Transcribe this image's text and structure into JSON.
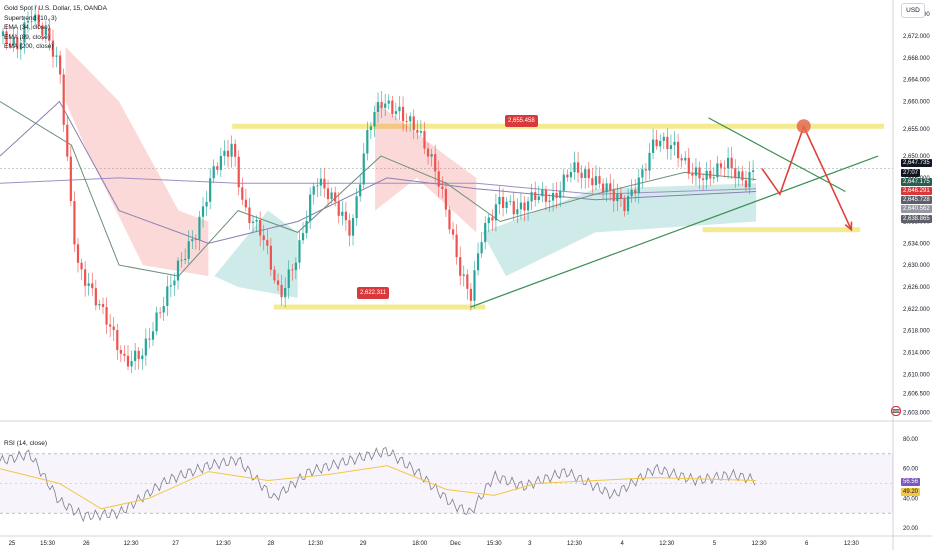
{
  "header": {
    "title": "Gold Spot / U.S. Dollar, 15, OANDA",
    "indicators": [
      "Supertrend (10, 3)",
      "EMA (34, close)",
      "EMA (89, close)",
      "EMA (200, close)"
    ],
    "currency": "USD"
  },
  "rsi": {
    "label": "RSI (14, close)",
    "value_a": "56.56",
    "value_b": "49.20"
  },
  "annotations": {
    "resistance_label": "2,655.458",
    "support_label": "2,622.311"
  },
  "price_tags": [
    {
      "text": "2,647.735",
      "bg": "#131722"
    },
    {
      "text": "27:07",
      "bg": "#131722"
    },
    {
      "text": "2,647.175",
      "bg": "#2c5e4f"
    },
    {
      "text": "2,646.291",
      "bg": "#d9393b"
    },
    {
      "text": "2,645.728",
      "bg": "#5d606b"
    },
    {
      "text": "2,640.562",
      "bg": "#9598a1"
    },
    {
      "text": "2,638.865",
      "bg": "#5d606b"
    }
  ],
  "colors": {
    "up": "#26a69a",
    "down": "#ef5350",
    "band": "#f0e36b",
    "arrow": "#e0403a",
    "trend": "#3e8f55",
    "rsi": "#7e57c2"
  },
  "chart_data": [
    {
      "type": "candlestick",
      "title": "Gold Spot / U.S. Dollar, 15, OANDA",
      "x_ticks": [
        "25",
        "15:30",
        "26",
        "12:30",
        "27",
        "12:30",
        "28",
        "12:30",
        "29",
        "18:00",
        "Dec",
        "15:30",
        "3",
        "12:30",
        "4",
        "12:30",
        "5",
        "12:30",
        "6",
        "12:30"
      ],
      "y_ticks": [
        "2,676.000",
        "2,672.000",
        "2,668.000",
        "2,664.000",
        "2,660.000",
        "2,655.000",
        "2,650.000",
        "2,646.000",
        "2,642.000",
        "2,638.000",
        "2,634.000",
        "2,630.000",
        "2,626.000",
        "2,622.000",
        "2,618.000",
        "2,614.000",
        "2,610.000",
        "2,606.500",
        "2,603.000"
      ],
      "ylim": [
        2601.8,
        2678.6
      ],
      "resistance": 2655.458,
      "support": 2622.311,
      "target": 2636.5,
      "price_path": [
        {
          "x": 0,
          "y": 2672
        },
        {
          "x": 6,
          "y": 2670
        },
        {
          "x": 10,
          "y": 2676
        },
        {
          "x": 16,
          "y": 2672
        },
        {
          "x": 20,
          "y": 2666
        },
        {
          "x": 24,
          "y": 2640
        },
        {
          "x": 26,
          "y": 2630
        },
        {
          "x": 30,
          "y": 2626
        },
        {
          "x": 36,
          "y": 2620
        },
        {
          "x": 42,
          "y": 2612
        },
        {
          "x": 48,
          "y": 2614
        },
        {
          "x": 54,
          "y": 2622
        },
        {
          "x": 60,
          "y": 2630
        },
        {
          "x": 66,
          "y": 2636
        },
        {
          "x": 72,
          "y": 2648
        },
        {
          "x": 78,
          "y": 2652
        },
        {
          "x": 82,
          "y": 2640
        },
        {
          "x": 88,
          "y": 2636
        },
        {
          "x": 94,
          "y": 2624
        },
        {
          "x": 100,
          "y": 2632
        },
        {
          "x": 106,
          "y": 2646
        },
        {
          "x": 112,
          "y": 2642
        },
        {
          "x": 118,
          "y": 2636
        },
        {
          "x": 124,
          "y": 2656
        },
        {
          "x": 128,
          "y": 2660
        },
        {
          "x": 134,
          "y": 2658
        },
        {
          "x": 140,
          "y": 2655
        },
        {
          "x": 146,
          "y": 2648
        },
        {
          "x": 150,
          "y": 2640
        },
        {
          "x": 154,
          "y": 2630
        },
        {
          "x": 158,
          "y": 2624
        },
        {
          "x": 162,
          "y": 2636
        },
        {
          "x": 168,
          "y": 2642
        },
        {
          "x": 174,
          "y": 2640
        },
        {
          "x": 180,
          "y": 2643
        },
        {
          "x": 186,
          "y": 2642
        },
        {
          "x": 192,
          "y": 2648
        },
        {
          "x": 198,
          "y": 2646
        },
        {
          "x": 204,
          "y": 2644
        },
        {
          "x": 210,
          "y": 2641
        },
        {
          "x": 216,
          "y": 2647
        },
        {
          "x": 220,
          "y": 2653
        },
        {
          "x": 226,
          "y": 2652
        },
        {
          "x": 232,
          "y": 2647
        },
        {
          "x": 238,
          "y": 2646
        },
        {
          "x": 244,
          "y": 2649
        },
        {
          "x": 250,
          "y": 2645
        },
        {
          "x": 254,
          "y": 2647.7
        }
      ],
      "projection": [
        {
          "x": 256,
          "y": 2647.7
        },
        {
          "x": 262,
          "y": 2643
        },
        {
          "x": 270,
          "y": 2655.4
        },
        {
          "x": 278,
          "y": 2646
        },
        {
          "x": 286,
          "y": 2636.5
        }
      ],
      "ema_34": [
        {
          "x": 0,
          "y": 2660
        },
        {
          "x": 24,
          "y": 2652
        },
        {
          "x": 40,
          "y": 2630
        },
        {
          "x": 60,
          "y": 2628
        },
        {
          "x": 80,
          "y": 2640
        },
        {
          "x": 100,
          "y": 2636
        },
        {
          "x": 128,
          "y": 2650
        },
        {
          "x": 150,
          "y": 2645
        },
        {
          "x": 168,
          "y": 2638
        },
        {
          "x": 200,
          "y": 2643
        },
        {
          "x": 230,
          "y": 2647
        },
        {
          "x": 254,
          "y": 2645.7
        }
      ],
      "ema_89": [
        {
          "x": 0,
          "y": 2650
        },
        {
          "x": 20,
          "y": 2660
        },
        {
          "x": 40,
          "y": 2640
        },
        {
          "x": 70,
          "y": 2634
        },
        {
          "x": 100,
          "y": 2638
        },
        {
          "x": 130,
          "y": 2646
        },
        {
          "x": 160,
          "y": 2644
        },
        {
          "x": 200,
          "y": 2642
        },
        {
          "x": 254,
          "y": 2643.5
        }
      ],
      "ema_200": [
        {
          "x": 0,
          "y": 2645
        },
        {
          "x": 40,
          "y": 2646
        },
        {
          "x": 80,
          "y": 2645
        },
        {
          "x": 120,
          "y": 2645
        },
        {
          "x": 160,
          "y": 2645
        },
        {
          "x": 200,
          "y": 2643
        },
        {
          "x": 254,
          "y": 2644
        }
      ],
      "trendline": [
        {
          "x": 158,
          "y": 2622.3
        },
        {
          "x": 295,
          "y": 2650
        }
      ]
    },
    {
      "type": "line",
      "title": "RSI (14, close)",
      "y_ticks": [
        "80.00",
        "60.00",
        "40.00",
        "20.00"
      ],
      "ylim": [
        16,
        82
      ],
      "bands": [
        70,
        30
      ],
      "rsi": [
        {
          "x": 0,
          "y": 65
        },
        {
          "x": 10,
          "y": 70
        },
        {
          "x": 20,
          "y": 38
        },
        {
          "x": 28,
          "y": 28
        },
        {
          "x": 40,
          "y": 30
        },
        {
          "x": 56,
          "y": 52
        },
        {
          "x": 70,
          "y": 62
        },
        {
          "x": 80,
          "y": 66
        },
        {
          "x": 92,
          "y": 40
        },
        {
          "x": 104,
          "y": 58
        },
        {
          "x": 122,
          "y": 68
        },
        {
          "x": 130,
          "y": 72
        },
        {
          "x": 140,
          "y": 58
        },
        {
          "x": 152,
          "y": 36
        },
        {
          "x": 158,
          "y": 30
        },
        {
          "x": 166,
          "y": 55
        },
        {
          "x": 176,
          "y": 48
        },
        {
          "x": 190,
          "y": 58
        },
        {
          "x": 206,
          "y": 42
        },
        {
          "x": 220,
          "y": 60
        },
        {
          "x": 234,
          "y": 52
        },
        {
          "x": 246,
          "y": 56
        },
        {
          "x": 254,
          "y": 52
        }
      ],
      "rsi_ma": [
        {
          "x": 0,
          "y": 60
        },
        {
          "x": 20,
          "y": 50
        },
        {
          "x": 34,
          "y": 33
        },
        {
          "x": 50,
          "y": 40
        },
        {
          "x": 70,
          "y": 58
        },
        {
          "x": 90,
          "y": 52
        },
        {
          "x": 110,
          "y": 56
        },
        {
          "x": 130,
          "y": 62
        },
        {
          "x": 150,
          "y": 46
        },
        {
          "x": 166,
          "y": 42
        },
        {
          "x": 180,
          "y": 50
        },
        {
          "x": 200,
          "y": 52
        },
        {
          "x": 220,
          "y": 54
        },
        {
          "x": 254,
          "y": 52
        }
      ]
    }
  ]
}
